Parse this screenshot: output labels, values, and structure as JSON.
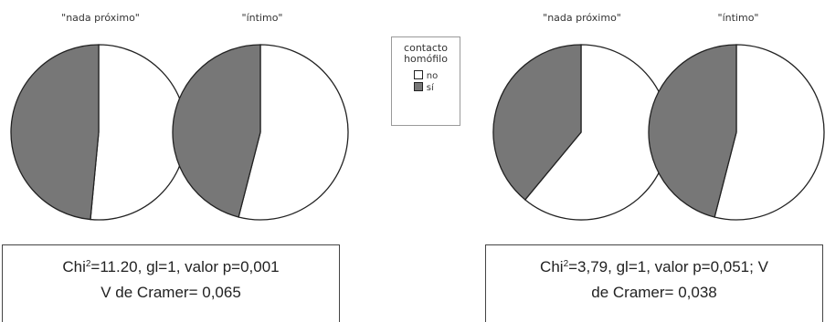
{
  "chart_data": [
    {
      "type": "pie",
      "title": "\"nada próximo\"",
      "slices": [
        {
          "label": "no",
          "value": 51.5
        },
        {
          "label": "sí",
          "value": 48.5
        }
      ]
    },
    {
      "type": "pie",
      "title": "\"íntimo\"",
      "slices": [
        {
          "label": "no",
          "value": 54
        },
        {
          "label": "sí",
          "value": 46
        }
      ]
    },
    {
      "type": "pie",
      "title": "\"nada próximo\"",
      "slices": [
        {
          "label": "no",
          "value": 61
        },
        {
          "label": "sí",
          "value": 39
        }
      ]
    },
    {
      "type": "pie",
      "title": "\"íntimo\"",
      "slices": [
        {
          "label": "no",
          "value": 54
        },
        {
          "label": "sí",
          "value": 46
        }
      ]
    }
  ],
  "colors": {
    "no": "#ffffff",
    "si": "#777777",
    "edge": "#222222"
  },
  "legend": {
    "title_line1": "contacto",
    "title_line2": "homófilo",
    "items": [
      "no",
      "sí"
    ]
  },
  "stats": {
    "left": {
      "line1_prefix": "Chi",
      "line1_sup": "2",
      "line1_rest": "=11.20, gl=1, valor p=0,001",
      "line2": "V de Cramer= 0,065"
    },
    "right": {
      "line1_prefix": "Chi",
      "line1_sup": "2",
      "line1_rest": "=3,79, gl=1, valor p=0,051; V",
      "line2": "de Cramer= 0,038"
    }
  }
}
